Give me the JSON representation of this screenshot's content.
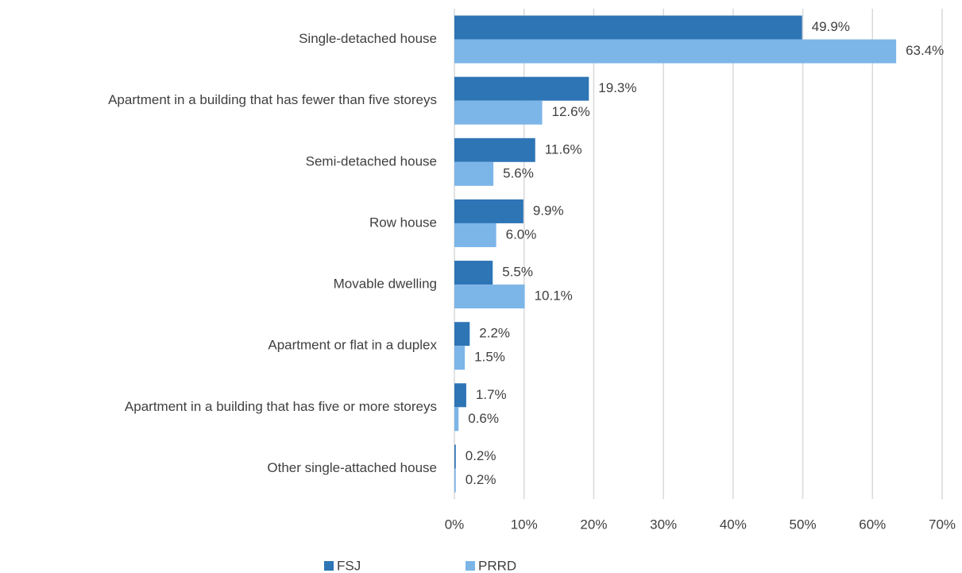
{
  "chart_data": {
    "type": "barh",
    "categories": [
      "Single-detached house",
      "Apartment in a building that has fewer than five storeys",
      "Semi-detached house",
      "Row house",
      "Movable dwelling",
      "Apartment or flat in a duplex",
      "Apartment in a building that has five or more storeys",
      "Other single-attached house"
    ],
    "series": [
      {
        "name": "FSJ",
        "color": "#2e75b6",
        "values": [
          49.9,
          19.3,
          11.6,
          9.9,
          5.5,
          2.2,
          1.7,
          0.2
        ],
        "value_labels": [
          "49.9%",
          "19.3%",
          "11.6%",
          "9.9%",
          "5.5%",
          "2.2%",
          "1.7%",
          "0.2%"
        ]
      },
      {
        "name": "PRRD",
        "color": "#7cb5e8",
        "values": [
          63.4,
          12.6,
          5.6,
          6.0,
          10.1,
          1.5,
          0.6,
          0.2
        ],
        "value_labels": [
          "63.4%",
          "12.6%",
          "5.6%",
          "6.0%",
          "10.1%",
          "1.5%",
          "0.6%",
          "0.2%"
        ]
      }
    ],
    "xlim": [
      0,
      70
    ],
    "xticks": [
      {
        "value": 0,
        "label": "0%"
      },
      {
        "value": 10,
        "label": "10%"
      },
      {
        "value": 20,
        "label": "20%"
      },
      {
        "value": 30,
        "label": "30%"
      },
      {
        "value": 40,
        "label": "40%"
      },
      {
        "value": 50,
        "label": "50%"
      },
      {
        "value": 60,
        "label": "60%"
      },
      {
        "value": 70,
        "label": "70%"
      }
    ],
    "grid": true,
    "legend": "bottom"
  }
}
